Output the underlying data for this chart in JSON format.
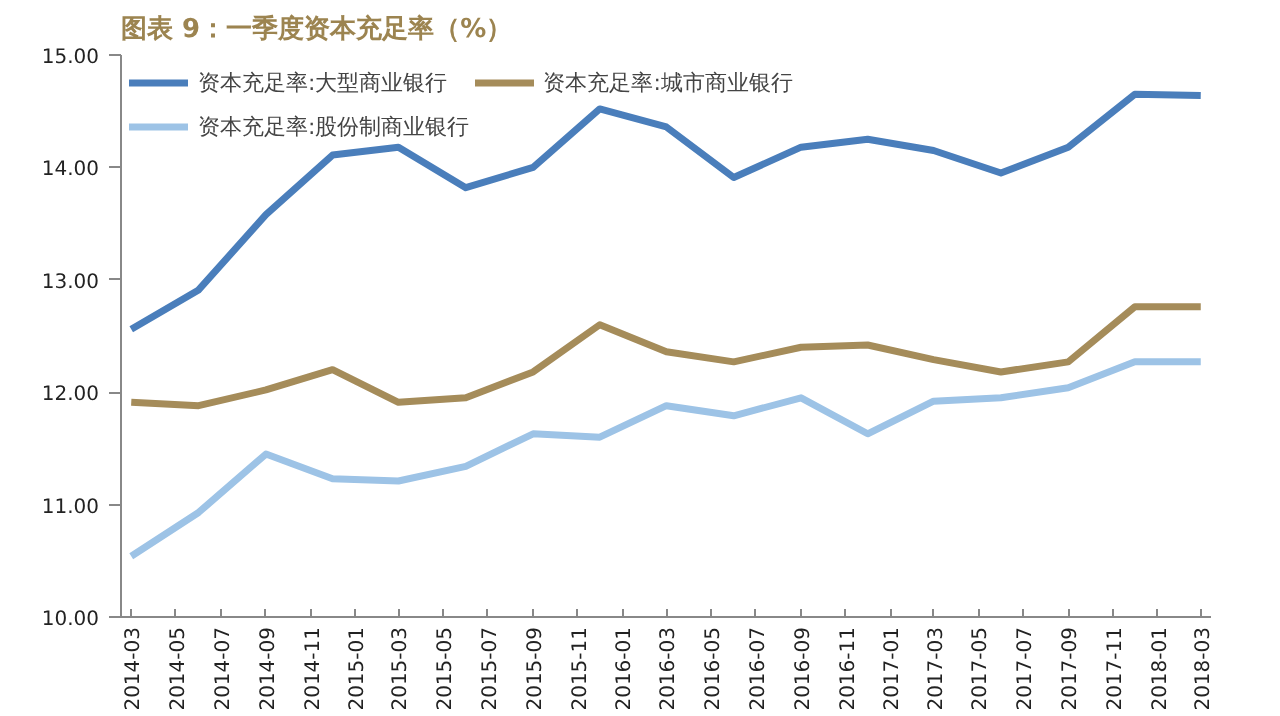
{
  "chart_data": {
    "type": "line",
    "title": "图表 9：一季度资本充足率（%）",
    "x": [
      "2014-03",
      "2014-06",
      "2014-09",
      "2014-12",
      "2015-03",
      "2015-06",
      "2015-09",
      "2015-12",
      "2016-03",
      "2016-06",
      "2016-09",
      "2016-12",
      "2017-03",
      "2017-06",
      "2017-09",
      "2017-12",
      "2018-03"
    ],
    "series": [
      {
        "name": "资本充足率:大型商业银行",
        "color": "#4a7ebb",
        "values": [
          12.56,
          12.91,
          13.58,
          14.11,
          14.18,
          13.82,
          14.0,
          14.52,
          14.36,
          13.91,
          14.18,
          14.25,
          14.15,
          13.95,
          14.18,
          14.65,
          14.64
        ]
      },
      {
        "name": "资本充足率:股份制商业银行",
        "color": "#9dc3e6",
        "values": [
          10.54,
          10.93,
          11.45,
          11.23,
          11.21,
          11.34,
          11.63,
          11.6,
          11.88,
          11.79,
          11.95,
          11.63,
          11.92,
          11.95,
          12.04,
          12.27,
          12.27
        ]
      },
      {
        "name": "资本充足率:城市商业银行",
        "color": "#a58c5a",
        "values": [
          11.91,
          11.88,
          12.02,
          12.2,
          11.91,
          11.95,
          12.18,
          12.6,
          12.36,
          12.27,
          12.4,
          12.42,
          12.29,
          12.18,
          12.27,
          12.76,
          12.76
        ]
      }
    ],
    "xlim": [
      "2014-02-15",
      "2018-03-15"
    ],
    "xticks": [
      "2014-03",
      "2014-05",
      "2014-07",
      "2014-09",
      "2014-11",
      "2015-01",
      "2015-03",
      "2015-05",
      "2015-07",
      "2015-09",
      "2015-11",
      "2016-01",
      "2016-03",
      "2016-05",
      "2016-07",
      "2016-09",
      "2016-11",
      "2017-01",
      "2017-03",
      "2017-05",
      "2017-07",
      "2017-09",
      "2017-11",
      "2018-01",
      "2018-03"
    ],
    "ylim": [
      10,
      15
    ],
    "yticks": [
      {
        "value": 10,
        "label": "10.00"
      },
      {
        "value": 11,
        "label": "11.00"
      },
      {
        "value": 12,
        "label": "12.00"
      },
      {
        "value": 13,
        "label": "13.00"
      },
      {
        "value": 14,
        "label": "14.00"
      },
      {
        "value": 15,
        "label": "15.00"
      }
    ],
    "grid": false,
    "legend": "top",
    "marker": "none",
    "line_style": "solid"
  }
}
